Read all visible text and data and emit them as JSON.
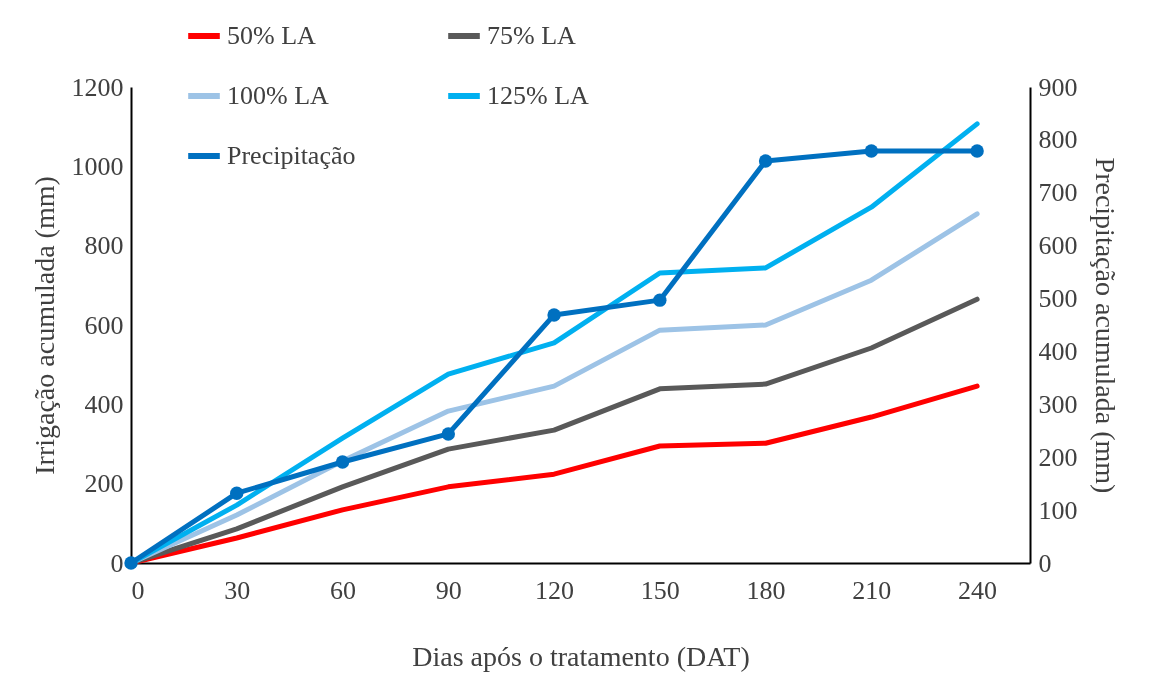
{
  "chart_data": {
    "type": "line",
    "xlabel": "Dias após o tratamento (DAT)",
    "ylabel": "Irrigação acumulada (mm)",
    "y2label": "Precipitação acumulada (mm)",
    "x": [
      0,
      30,
      60,
      90,
      120,
      150,
      180,
      210,
      240
    ],
    "xlim": [
      0,
      255
    ],
    "xticks": [
      0,
      30,
      60,
      90,
      120,
      150,
      180,
      210,
      240
    ],
    "ylim": [
      0,
      1200
    ],
    "yticks": [
      0,
      200,
      400,
      600,
      800,
      1000,
      1200
    ],
    "y2lim": [
      0,
      900
    ],
    "y2ticks": [
      0,
      100,
      200,
      300,
      400,
      500,
      600,
      700,
      800,
      900
    ],
    "grid": false,
    "legend": "top left",
    "line_style": "solid",
    "series": [
      {
        "name": "50% LA",
        "color": "#ff0000",
        "values": [
          0,
          63,
          134,
          192,
          224,
          295,
          302,
          368,
          446
        ]
      },
      {
        "name": "75% LA",
        "color": "#595959",
        "values": [
          0,
          86,
          192,
          287,
          335,
          439,
          451,
          542,
          665
        ]
      },
      {
        "name": "100% LA",
        "color": "#9dc3e6",
        "values": [
          0,
          121,
          257,
          383,
          446,
          587,
          600,
          713,
          880
        ]
      },
      {
        "name": "125% LA",
        "color": "#00b0f0",
        "values": [
          0,
          146,
          315,
          476,
          555,
          731,
          744,
          897,
          1107
        ]
      },
      {
        "name": "Precipitação",
        "color": "#0070c0",
        "axis": "y2",
        "marker": "circle",
        "values": [
          0,
          132,
          191,
          244,
          469,
          497,
          760,
          779,
          779
        ]
      }
    ]
  }
}
